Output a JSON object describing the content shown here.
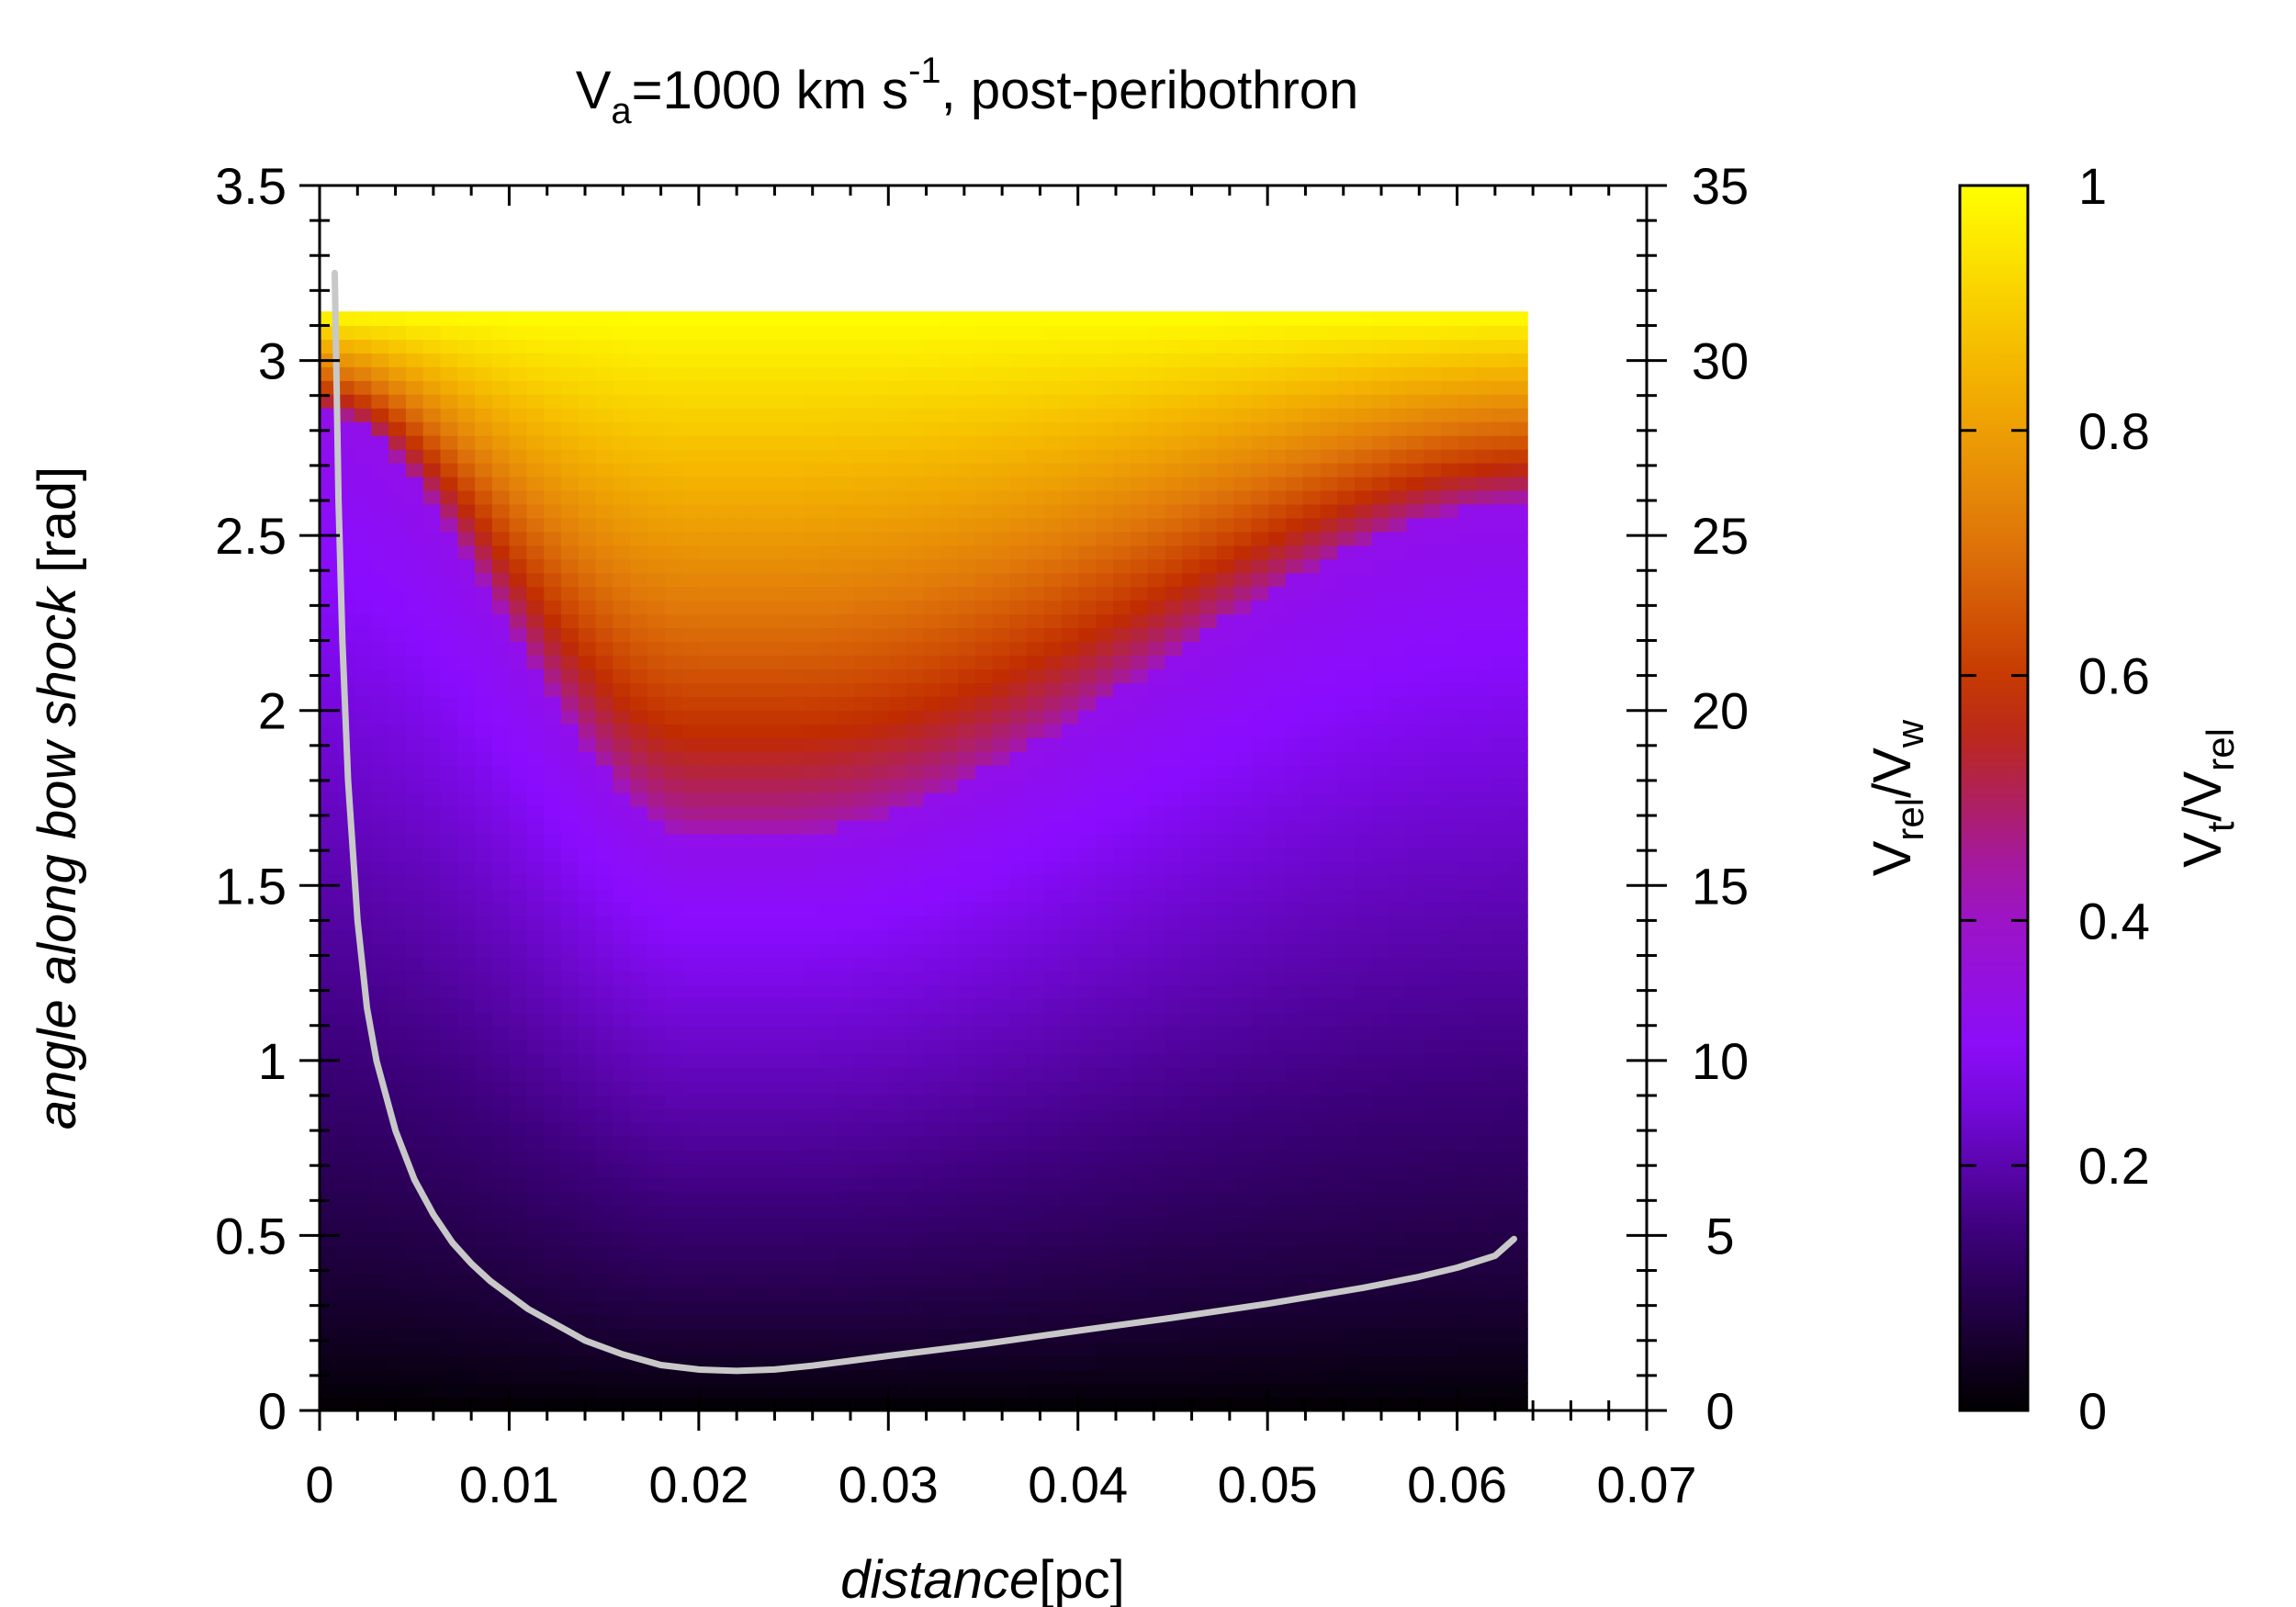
{
  "chart_data": {
    "type": "heatmap",
    "title": {
      "main": "V",
      "sub": "a",
      "middle": "=1000 km s",
      "sup": "-1",
      "tail": ", post-peribothron"
    },
    "xlabel": {
      "italic": "distance",
      "unit": "[pc]"
    },
    "ylabel": {
      "italic": "angle along bow shock",
      "unit": " [rad]"
    },
    "y2label": {
      "a": "V",
      "a_sub": "rel",
      "sep": "/V",
      "b_sub": "w"
    },
    "colorbar_label": {
      "a": "V",
      "a_sub": "t",
      "sep": "/V",
      "b_sub": "rel"
    },
    "xlim": [
      0,
      0.07
    ],
    "ylim": [
      0,
      3.5
    ],
    "y2lim": [
      0,
      35
    ],
    "clim": [
      0,
      1
    ],
    "x_ticks": [
      "0",
      "0.01",
      "0.02",
      "0.03",
      "0.04",
      "0.05",
      "0.06",
      "0.07"
    ],
    "y_ticks": [
      "0",
      "0.5",
      "1",
      "1.5",
      "2",
      "2.5",
      "3",
      "3.5"
    ],
    "y2_ticks": [
      "0",
      "5",
      "10",
      "15",
      "20",
      "25",
      "30",
      "35"
    ],
    "colorbar_ticks": [
      "0",
      "0.2",
      "0.4",
      "0.6",
      "0.8",
      "1"
    ],
    "colormap": [
      "#000000",
      "#3b0078",
      "#8a0cff",
      "#a016b8",
      "#c02b00",
      "#e0780a",
      "#f5b800",
      "#ffff00"
    ],
    "heatmap_extent": {
      "x": [
        0,
        0.0637
      ],
      "y": [
        0,
        3.14
      ]
    },
    "line_color": "#c8c8c8",
    "series": [
      {
        "axis": "y2",
        "x": [
          0.0008,
          0.001,
          0.0012,
          0.0015,
          0.002,
          0.0025,
          0.003,
          0.004,
          0.005,
          0.006,
          0.007,
          0.008,
          0.009,
          0.01,
          0.011,
          0.012,
          0.013,
          0.014,
          0.015,
          0.016,
          0.018,
          0.02,
          0.022,
          0.024,
          0.026,
          0.028,
          0.03,
          0.035,
          0.04,
          0.045,
          0.05,
          0.055,
          0.058,
          0.06,
          0.062,
          0.063
        ],
        "y": [
          32.5,
          26.0,
          22.0,
          18.0,
          14.0,
          11.5,
          10.0,
          8.0,
          6.6,
          5.6,
          4.8,
          4.2,
          3.7,
          3.3,
          2.9,
          2.6,
          2.3,
          2.0,
          1.8,
          1.6,
          1.3,
          1.17,
          1.13,
          1.17,
          1.28,
          1.42,
          1.56,
          1.9,
          2.28,
          2.65,
          3.05,
          3.5,
          3.82,
          4.08,
          4.42,
          4.9
        ]
      }
    ]
  }
}
